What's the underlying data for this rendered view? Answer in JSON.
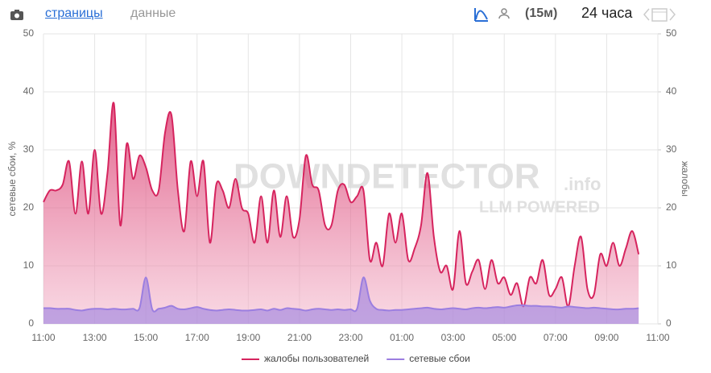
{
  "toolbar": {
    "tabs": [
      "страницы",
      "данные"
    ],
    "interval": "(15м)",
    "period": "24 часа"
  },
  "chart_data": {
    "type": "line",
    "y_label": "сетевые сбои, %",
    "y2_label": "жалобы",
    "watermark": [
      "DOWNDETECTOR",
      ".info",
      "LLM POWERED"
    ],
    "categories": [
      "11:00",
      null,
      null,
      null,
      null,
      null,
      null,
      null,
      "13:00",
      null,
      null,
      null,
      null,
      null,
      null,
      null,
      "15:00",
      null,
      null,
      null,
      null,
      null,
      null,
      null,
      "17:00",
      null,
      null,
      null,
      null,
      null,
      null,
      null,
      "19:00",
      null,
      null,
      null,
      null,
      null,
      null,
      null,
      "21:00",
      null,
      null,
      null,
      null,
      null,
      null,
      null,
      "23:00",
      null,
      null,
      null,
      null,
      null,
      null,
      null,
      "01:00",
      null,
      null,
      null,
      null,
      null,
      null,
      null,
      "03:00",
      null,
      null,
      null,
      null,
      null,
      null,
      null,
      "05:00",
      null,
      null,
      null,
      null,
      null,
      null,
      null,
      "07:00",
      null,
      null,
      null,
      null,
      null,
      null,
      null,
      "09:00",
      null,
      null,
      null,
      null,
      null,
      null,
      null,
      "11:00"
    ],
    "ylim": [
      0,
      50
    ],
    "yticks": [
      0,
      10,
      20,
      30,
      40,
      50
    ],
    "y2lim": [
      0,
      50
    ],
    "y2ticks": [
      0,
      10,
      20,
      30,
      40,
      50
    ],
    "grid": true,
    "series": [
      {
        "name": "жалобы пользователей",
        "color": "#d6245e",
        "axis": "y2",
        "values": [
          21,
          23,
          23,
          24,
          28,
          19,
          28,
          19,
          30,
          19,
          26,
          38,
          17,
          31,
          25,
          29,
          27,
          23,
          23,
          33,
          36,
          23,
          16,
          28,
          22,
          28,
          14,
          24,
          23,
          20,
          25,
          20,
          19,
          14,
          22,
          14,
          23,
          15,
          22,
          15,
          18,
          29,
          24,
          23,
          17,
          17,
          23,
          24,
          21,
          22,
          23,
          11,
          14,
          10,
          19,
          14,
          19,
          11,
          13,
          17,
          26,
          15,
          9,
          10,
          6,
          16,
          7,
          9,
          11,
          6,
          11,
          7,
          8,
          5,
          7,
          3,
          8,
          7,
          11,
          5,
          6,
          8,
          3,
          10,
          15,
          6,
          5,
          12,
          10,
          14,
          10,
          13,
          16,
          12,
          null,
          null,
          null
        ]
      },
      {
        "name": "сетевые сбои",
        "color": "#9b7ee0",
        "values": [
          2.7,
          2.7,
          2.6,
          2.6,
          2.6,
          2.4,
          2.3,
          2.5,
          2.6,
          2.6,
          2.5,
          2.6,
          2.5,
          2.5,
          2.6,
          2.7,
          8,
          2.5,
          2.6,
          2.8,
          3.1,
          2.6,
          2.5,
          2.7,
          2.9,
          2.6,
          2.4,
          2.3,
          2.4,
          2.5,
          2.4,
          2.3,
          2.3,
          2.4,
          2.5,
          2.3,
          2.6,
          2.4,
          2.7,
          2.6,
          2.5,
          2.3,
          2.5,
          2.6,
          2.5,
          2.4,
          2.5,
          2.4,
          2.5,
          2.6,
          8,
          4,
          2.6,
          2.4,
          2.3,
          2.4,
          2.4,
          2.5,
          2.6,
          2.7,
          2.8,
          2.6,
          2.5,
          2.6,
          2.7,
          2.6,
          2.5,
          2.7,
          2.8,
          2.7,
          2.8,
          2.9,
          2.8,
          3.0,
          3.2,
          3.2,
          3.1,
          3.1,
          3.0,
          3.0,
          2.9,
          2.8,
          3.0,
          2.9,
          2.8,
          2.7,
          2.8,
          2.7,
          2.6,
          2.5,
          2.5,
          2.6,
          2.6,
          2.7,
          null,
          null,
          null
        ]
      }
    ]
  }
}
